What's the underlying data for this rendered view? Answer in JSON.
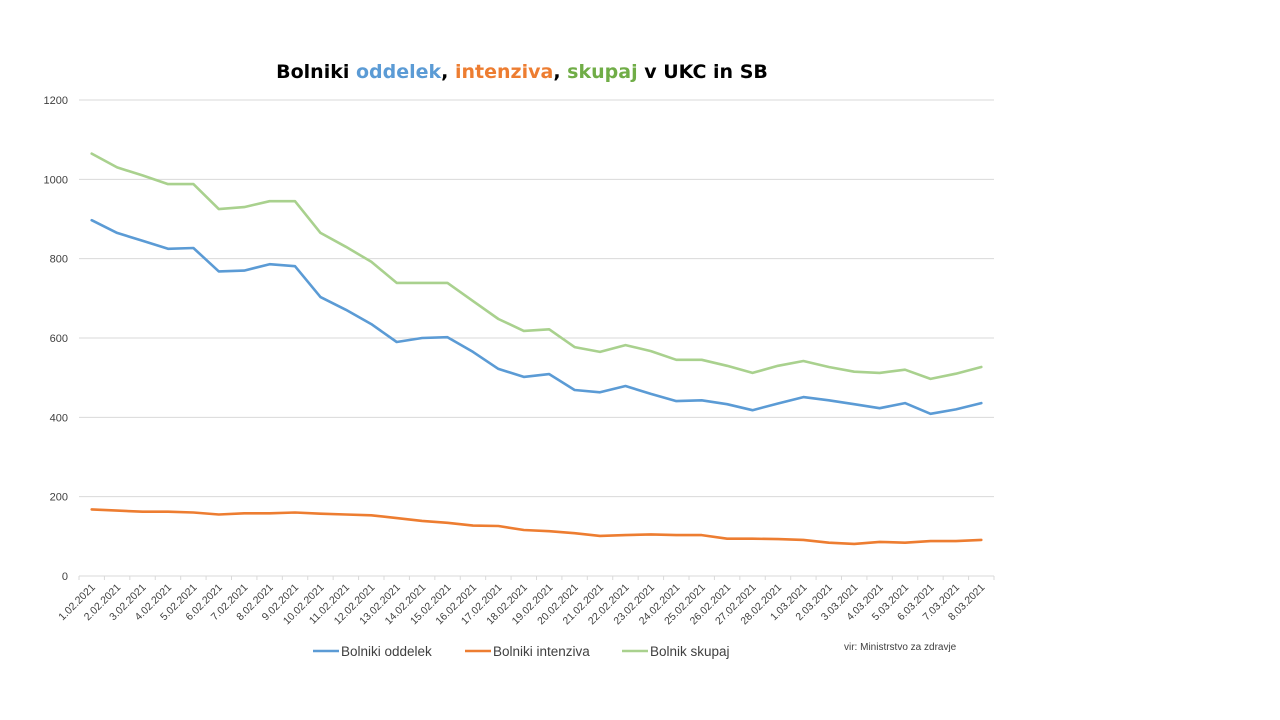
{
  "chart_data": {
    "type": "line",
    "title": {
      "parts": [
        {
          "text": "Bolniki ",
          "color": "#000000"
        },
        {
          "text": "oddelek",
          "color": "#5b9bd5"
        },
        {
          "text": ", ",
          "color": "#000000"
        },
        {
          "text": "intenziva",
          "color": "#ed7d31"
        },
        {
          "text": ", ",
          "color": "#000000"
        },
        {
          "text": "skupaj",
          "color": "#70ad47"
        },
        {
          "text": " v UKC in SB",
          "color": "#000000"
        }
      ]
    },
    "xlabel": "",
    "ylabel": "",
    "ylim": [
      0,
      1200
    ],
    "yticks": [
      0,
      200,
      400,
      600,
      800,
      1000,
      1200
    ],
    "grid": true,
    "legend_position": "bottom",
    "categories": [
      "1.02.2021",
      "2.02.2021",
      "3.02.2021",
      "4.02.2021",
      "5.02.2021",
      "6.02.2021",
      "7.02.2021",
      "8.02.2021",
      "9.02.2021",
      "10.02.2021",
      "11.02.2021",
      "12.02.2021",
      "13.02.2021",
      "14.02.2021",
      "15.02.2021",
      "16.02.2021",
      "17.02.2021",
      "18.02.2021",
      "19.02.2021",
      "20.02.2021",
      "21.02.2021",
      "22.02.2021",
      "23.02.2021",
      "24.02.2021",
      "25.02.2021",
      "26.02.2021",
      "27.02.2021",
      "28.02.2021",
      "1.03.2021",
      "2.03.2021",
      "3.03.2021",
      "4.03.2021",
      "5.03.2021",
      "6.03.2021",
      "7.03.2021",
      "8.03.2021"
    ],
    "series": [
      {
        "name": "Bolniki oddelek",
        "color": "#5b9bd5",
        "values": [
          897,
          865,
          845,
          825,
          827,
          768,
          770,
          786,
          781,
          703,
          671,
          635,
          590,
          600,
          602,
          565,
          522,
          502,
          509,
          469,
          463,
          479,
          459,
          441,
          443,
          433,
          418,
          435,
          451,
          443,
          433,
          423,
          436,
          409,
          420,
          436
        ]
      },
      {
        "name": "Bolniki intenziva",
        "color": "#ed7d31",
        "values": [
          168,
          165,
          162,
          162,
          160,
          155,
          158,
          158,
          160,
          157,
          155,
          153,
          146,
          139,
          134,
          127,
          126,
          116,
          113,
          108,
          101,
          103,
          105,
          103,
          103,
          94,
          94,
          93,
          91,
          84,
          81,
          86,
          84,
          88,
          88,
          91
        ]
      },
      {
        "name": "Bolnik skupaj",
        "color": "#a9d18e",
        "values": [
          1065,
          1030,
          1010,
          988,
          988,
          925,
          930,
          945,
          945,
          865,
          830,
          792,
          739,
          739,
          739,
          693,
          648,
          618,
          622,
          577,
          565,
          582,
          567,
          545,
          545,
          530,
          512,
          530,
          542,
          527,
          515,
          512,
          520,
          497,
          510,
          527
        ]
      }
    ],
    "annotations": [
      "vir: Ministrstvo za zdravje"
    ]
  }
}
